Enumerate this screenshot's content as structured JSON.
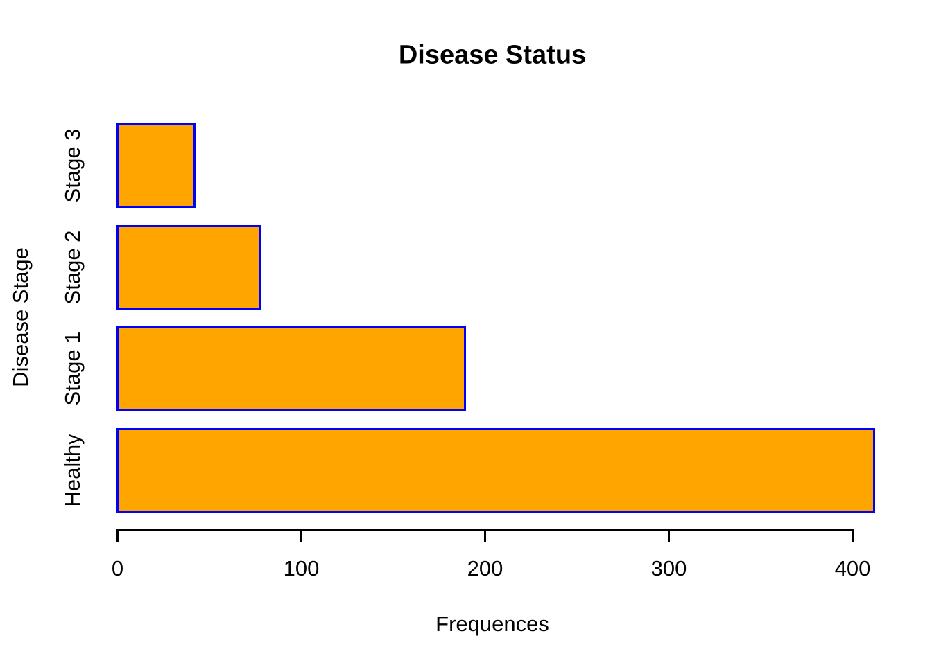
{
  "chart_data": {
    "type": "bar",
    "orientation": "horizontal",
    "title": "Disease Status",
    "xlabel": "Frequences",
    "ylabel": "Disease Stage",
    "categories": [
      "Healthy",
      "Stage 1",
      "Stage 2",
      "Stage 3"
    ],
    "values": [
      413,
      190,
      79,
      43
    ],
    "xticks": [
      0,
      100,
      200,
      300,
      400
    ],
    "xlim": [
      0,
      400
    ],
    "grid": false,
    "legend": "none",
    "colors": {
      "bar_fill": "#FFA500",
      "bar_border": "#0000FF",
      "axis": "#000000",
      "text": "#000000",
      "background": "#FFFFFF"
    }
  }
}
